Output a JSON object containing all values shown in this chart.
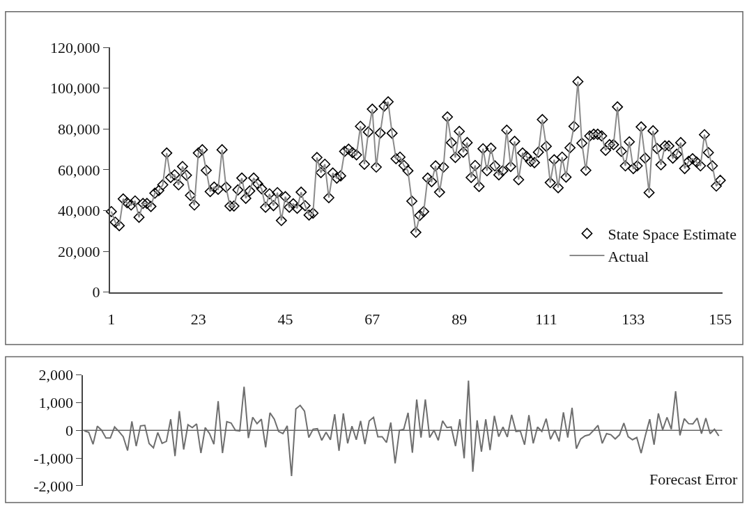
{
  "chart_data": [
    {
      "type": "line",
      "legend": "bottom right",
      "x": [
        1,
        2,
        3,
        4,
        5,
        6,
        7,
        8,
        9,
        10,
        11,
        12,
        13,
        14,
        15,
        16,
        17,
        18,
        19,
        20,
        21,
        22,
        23,
        24,
        25,
        26,
        27,
        28,
        29,
        30,
        31,
        32,
        33,
        34,
        35,
        36,
        37,
        38,
        39,
        40,
        41,
        42,
        43,
        44,
        45,
        46,
        47,
        48,
        49,
        50,
        51,
        52,
        53,
        54,
        55,
        56,
        57,
        58,
        59,
        60,
        61,
        62,
        63,
        64,
        65,
        66,
        67,
        68,
        69,
        70,
        71,
        72,
        73,
        74,
        75,
        76,
        77,
        78,
        79,
        80,
        81,
        82,
        83,
        84,
        85,
        86,
        87,
        88,
        89,
        90,
        91,
        92,
        93,
        94,
        95,
        96,
        97,
        98,
        99,
        100,
        101,
        102,
        103,
        104,
        105,
        106,
        107,
        108,
        109,
        110,
        111,
        112,
        113,
        114,
        115,
        116,
        117,
        118,
        119,
        120,
        121,
        122,
        123,
        124,
        125,
        126,
        127,
        128,
        129,
        130,
        131,
        132,
        133,
        134,
        135,
        136,
        137,
        138,
        139,
        140,
        141,
        142,
        143,
        144,
        145,
        146,
        147,
        148,
        149,
        150,
        151,
        152,
        153,
        154,
        155
      ],
      "xlim": [
        0.6,
        155.5
      ],
      "xticks": [
        1,
        23,
        45,
        67,
        89,
        111,
        133,
        155
      ],
      "ylim": [
        0,
        120000
      ],
      "yticks": [
        {
          "value": 0,
          "label": "0"
        },
        {
          "value": 20000,
          "label": "20,000"
        },
        {
          "value": 40000,
          "label": "40,000"
        },
        {
          "value": 60000,
          "label": "60,000"
        },
        {
          "value": 80000,
          "label": "80,000"
        },
        {
          "value": 100000,
          "label": "100,000"
        },
        {
          "value": 120000,
          "label": "120,000"
        }
      ],
      "series": [
        {
          "name": "State Space Estimate",
          "type": "scatter",
          "marker": "diamond",
          "color": "#000000",
          "values": [
            39500,
            34300,
            32600,
            45700,
            43800,
            42700,
            44700,
            36700,
            43500,
            43500,
            42000,
            48500,
            49800,
            52600,
            68200,
            56200,
            57500,
            52600,
            61600,
            57300,
            47400,
            42700,
            68200,
            69800,
            59700,
            49300,
            51500,
            50400,
            69800,
            51500,
            42200,
            42200,
            50100,
            55900,
            46000,
            49600,
            55900,
            53100,
            50700,
            41600,
            48200,
            42400,
            48800,
            35100,
            46800,
            41600,
            43300,
            41100,
            49000,
            42400,
            37800,
            38700,
            66000,
            58600,
            62700,
            46300,
            58400,
            55900,
            57000,
            69000,
            70100,
            68400,
            67300,
            81300,
            62700,
            78500,
            89700,
            61300,
            78000,
            91200,
            93300,
            77900,
            65400,
            66200,
            62100,
            59500,
            44600,
            29300,
            37600,
            39500,
            55900,
            54200,
            61900,
            49000,
            61300,
            85900,
            73300,
            66000,
            78800,
            68600,
            73300,
            56200,
            62100,
            51800,
            70300,
            59500,
            70600,
            61900,
            57500,
            59500,
            79400,
            61600,
            73900,
            55100,
            68200,
            66500,
            64100,
            63500,
            68600,
            84600,
            71500,
            53700,
            64900,
            51200,
            66200,
            56400,
            70800,
            81300,
            103200,
            73000,
            59700,
            76600,
            77400,
            77400,
            76600,
            69500,
            72300,
            72300,
            90800,
            69000,
            61900,
            73700,
            60600,
            61900,
            81000,
            65700,
            48800,
            79100,
            70400,
            62400,
            71700,
            71700,
            65700,
            67600,
            73300,
            60600,
            64100,
            65400,
            63800,
            61900,
            77200,
            68400,
            61900,
            52000,
            54800
          ]
        },
        {
          "name": "Actual",
          "type": "line",
          "marker": "none",
          "color": "#8a8a8a",
          "values": [
            39500,
            34300,
            32600,
            45700,
            43800,
            42700,
            44700,
            36700,
            43500,
            43500,
            42000,
            48500,
            49800,
            52600,
            68200,
            56200,
            57500,
            52600,
            61600,
            57300,
            47400,
            42700,
            68200,
            69800,
            59700,
            49300,
            51500,
            50400,
            69800,
            51500,
            42200,
            42200,
            50100,
            55900,
            46000,
            49600,
            55900,
            53100,
            50700,
            41600,
            48200,
            42400,
            48800,
            35100,
            46800,
            41600,
            43300,
            41100,
            49000,
            42400,
            37800,
            38700,
            66000,
            58600,
            62700,
            46300,
            58400,
            55900,
            57000,
            69000,
            70100,
            68400,
            67300,
            81300,
            62700,
            78500,
            89700,
            61300,
            78000,
            91200,
            93300,
            77900,
            65400,
            66200,
            62100,
            59500,
            44600,
            29300,
            37600,
            39500,
            55900,
            54200,
            61900,
            49000,
            61300,
            85900,
            73300,
            66000,
            78800,
            68600,
            73300,
            56200,
            62100,
            51800,
            70300,
            59500,
            70600,
            61900,
            57500,
            59500,
            79400,
            61600,
            73900,
            55100,
            68200,
            66500,
            64100,
            63500,
            68600,
            84600,
            71500,
            53700,
            64900,
            51200,
            66200,
            56400,
            70800,
            81300,
            103200,
            73000,
            59700,
            76600,
            77400,
            77400,
            76600,
            69500,
            72300,
            72300,
            90800,
            69000,
            61900,
            73700,
            60600,
            61900,
            81000,
            65700,
            48800,
            79100,
            70400,
            62400,
            71700,
            71700,
            65700,
            67600,
            73300,
            60600,
            64100,
            65400,
            63800,
            61900,
            77200,
            68400,
            61900,
            52000,
            54800
          ]
        }
      ]
    },
    {
      "type": "line",
      "tick_labels": "y",
      "categories": [
        null,
        null,
        null,
        null,
        null,
        null,
        null,
        null,
        null,
        null,
        null,
        null,
        null,
        null,
        null,
        null,
        null,
        null,
        null,
        null,
        null,
        null,
        null,
        null,
        null,
        null,
        null,
        null,
        null,
        null,
        null,
        null,
        null,
        null,
        null,
        null,
        null,
        null,
        null,
        null,
        null,
        null,
        null,
        null,
        null,
        null,
        null,
        null,
        null,
        null,
        null,
        null,
        null,
        null,
        null,
        null,
        null,
        null,
        null,
        null,
        null,
        null,
        null,
        null,
        null,
        null,
        null,
        null,
        null,
        null,
        null,
        null,
        null,
        null,
        null,
        null,
        null,
        null,
        null,
        null,
        null,
        null,
        null,
        null,
        null,
        null,
        null,
        null,
        null,
        null,
        null,
        null,
        null,
        null,
        null,
        null,
        null,
        null,
        null,
        null,
        null,
        null,
        null,
        null,
        null,
        null,
        null,
        null,
        null,
        null,
        null,
        null,
        null,
        null,
        null,
        null,
        null,
        null,
        null,
        null,
        null,
        null,
        null,
        null,
        null,
        null,
        null,
        null,
        null,
        null,
        null,
        null,
        null,
        null,
        null,
        null,
        null,
        null,
        null,
        null,
        null,
        null,
        null,
        null,
        null,
        null,
        null,
        null
      ],
      "ylim": [
        -2000,
        2000
      ],
      "yticks": [
        {
          "value": -2000,
          "label": "-2,000"
        },
        {
          "value": -1000,
          "label": "-1,000"
        },
        {
          "value": 0,
          "label": "0"
        },
        {
          "value": 1000,
          "label": "1,000"
        },
        {
          "value": 2000,
          "label": "2,000"
        }
      ],
      "color": "#6e6e6e",
      "values": [
        -20,
        -70,
        -500,
        150,
        0,
        -280,
        -280,
        120,
        -40,
        -230,
        -730,
        320,
        -570,
        160,
        180,
        -480,
        -630,
        -80,
        -470,
        -400,
        400,
        -930,
        690,
        -690,
        200,
        100,
        230,
        -820,
        100,
        -120,
        -500,
        1050,
        -820,
        310,
        260,
        0,
        -20,
        1570,
        -280,
        470,
        240,
        400,
        -610,
        630,
        400,
        -40,
        -120,
        160,
        -1650,
        770,
        900,
        690,
        -260,
        40,
        60,
        -360,
        -70,
        -340,
        580,
        -740,
        610,
        -470,
        150,
        -340,
        340,
        -500,
        340,
        470,
        -230,
        -230,
        -440,
        280,
        -1190,
        0,
        40,
        630,
        -810,
        1110,
        -260,
        1110,
        -260,
        0,
        -360,
        340,
        100,
        120,
        -570,
        400,
        -1010,
        1790,
        -1490,
        360,
        -770,
        400,
        -710,
        520,
        -230,
        120,
        -240,
        560,
        -40,
        -20,
        -520,
        550,
        -470,
        120,
        -40,
        420,
        -320,
        0,
        -400,
        650,
        -260,
        810,
        -660,
        -310,
        -200,
        -160,
        0,
        180,
        -470,
        -120,
        -160,
        -310,
        -160,
        260,
        -230,
        -340,
        -260,
        -820,
        -180,
        400,
        -520,
        610,
        20,
        470,
        40,
        1410,
        -180,
        420,
        240,
        230,
        440,
        -120,
        440,
        -120,
        40,
        -200
      ],
      "ref_lines": [
        {
          "axis": "y",
          "value": 0,
          "color": "#666666"
        }
      ],
      "annotations": [
        "Forecast Error"
      ]
    }
  ]
}
